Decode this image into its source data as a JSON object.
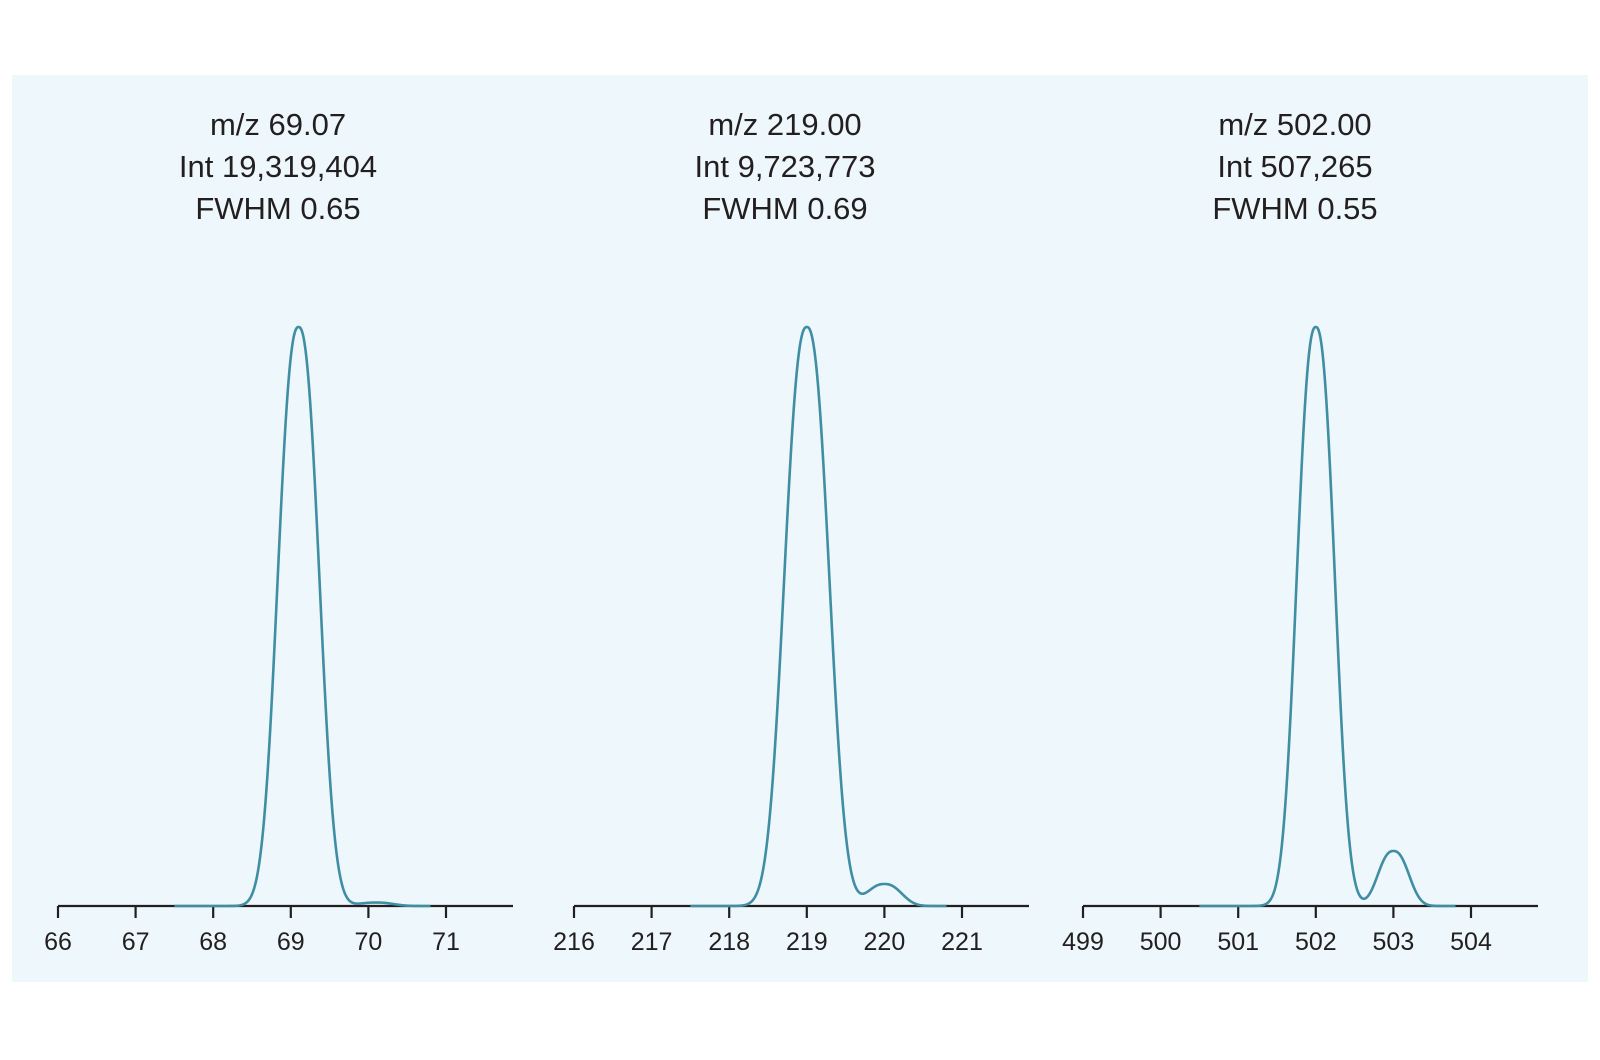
{
  "colors": {
    "background": "#eef7fb",
    "line": "#3f8ea4",
    "axis": "#231f20"
  },
  "chart_data": [
    {
      "type": "line",
      "annotation": [
        "m/z 69.07",
        "Int 19,319,404",
        "FWHM 0.65"
      ],
      "xticks": [
        66,
        67,
        68,
        69,
        70,
        71
      ],
      "xlim": [
        66,
        71.9
      ],
      "peaks": [
        {
          "x": 69.1,
          "y": 1.0,
          "fwhm": 0.6
        },
        {
          "x": 70.1,
          "y": 0.006,
          "fwhm": 0.5
        }
      ]
    },
    {
      "type": "line",
      "annotation": [
        "m/z 219.00",
        "Int 9,723,773",
        "FWHM 0.69"
      ],
      "xticks": [
        216,
        217,
        218,
        219,
        220,
        221
      ],
      "xlim": [
        216,
        221.9
      ],
      "peaks": [
        {
          "x": 219.0,
          "y": 1.0,
          "fwhm": 0.65
        },
        {
          "x": 220.0,
          "y": 0.038,
          "fwhm": 0.5
        }
      ]
    },
    {
      "type": "line",
      "annotation": [
        "m/z 502.00",
        "Int 507,265",
        "FWHM 0.55"
      ],
      "xticks": [
        499,
        500,
        501,
        502,
        503,
        504
      ],
      "xlim": [
        499,
        504.9
      ],
      "peaks": [
        {
          "x": 502.0,
          "y": 1.0,
          "fwhm": 0.55
        },
        {
          "x": 503.0,
          "y": 0.095,
          "fwhm": 0.45
        }
      ]
    }
  ]
}
